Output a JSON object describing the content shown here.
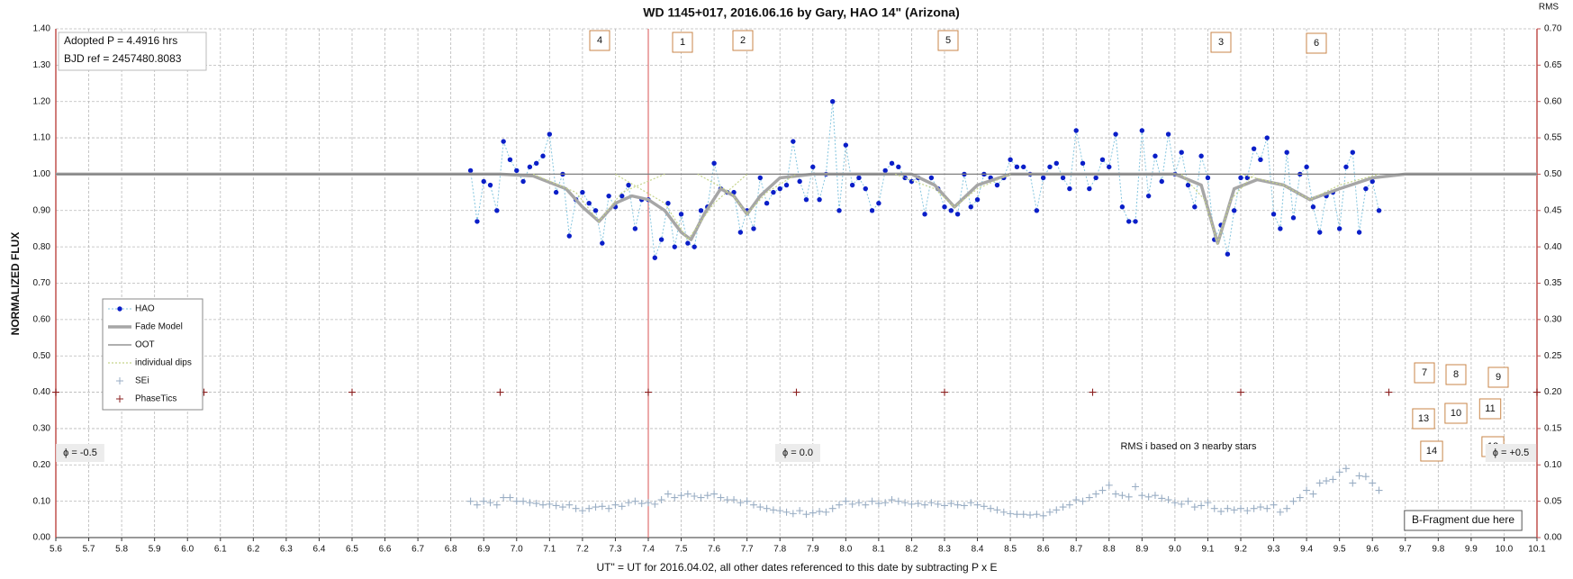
{
  "chart_data": {
    "type": "scatter",
    "title": "WD 1145+017, 2016.06.16  by Gary, HAO 14\" (Arizona)",
    "x_label": "UT\" = UT for 2016.04.02, all other dates referenced to this date by subtracting P x E",
    "y_label": "NORMALIZED  FLUX",
    "y2_label": "RMS",
    "xlim": [
      5.6,
      10.1
    ],
    "ylim": [
      0,
      1.4
    ],
    "y2lim": [
      0,
      0.7
    ],
    "grid": true,
    "reference_line_x": 7.4,
    "xticks": [
      5.6,
      5.7,
      5.8,
      5.9,
      {
        "value": 6.0,
        "label": "6.0"
      },
      6.1,
      6.2,
      6.3,
      6.4,
      6.5,
      6.6,
      6.7,
      6.8,
      6.9,
      {
        "value": 7.0,
        "label": "7.0"
      },
      7.1,
      7.2,
      7.3,
      7.4,
      7.5,
      7.6,
      7.7,
      7.8,
      7.9,
      {
        "value": 8.0,
        "label": "8.0"
      },
      8.1,
      8.2,
      8.3,
      8.4,
      8.5,
      8.6,
      8.7,
      8.8,
      8.9,
      {
        "value": 9.0,
        "label": "9.0"
      },
      9.1,
      9.2,
      9.3,
      9.4,
      9.5,
      9.6,
      9.7,
      9.8,
      9.9,
      {
        "value": 10.0,
        "label": "10.0"
      },
      10.1
    ],
    "yticks": [
      {
        "value": 0,
        "label": "0.00"
      },
      {
        "value": 0.1,
        "label": "0.10"
      },
      {
        "value": 0.2,
        "label": "0.20"
      },
      {
        "value": 0.3,
        "label": "0.30"
      },
      {
        "value": 0.4,
        "label": "0.40"
      },
      {
        "value": 0.5,
        "label": "0.50"
      },
      {
        "value": 0.6,
        "label": "0.60"
      },
      {
        "value": 0.7,
        "label": "0.70"
      },
      {
        "value": 0.8,
        "label": "0.80"
      },
      {
        "value": 0.9,
        "label": "0.90"
      },
      {
        "value": 1.0,
        "label": "1.00"
      },
      {
        "value": 1.1,
        "label": "1.10"
      },
      {
        "value": 1.2,
        "label": "1.20"
      },
      {
        "value": 1.3,
        "label": "1.30"
      },
      {
        "value": 1.4,
        "label": "1.40"
      }
    ],
    "y2ticks": [
      {
        "value": 0,
        "label": "0.00"
      },
      {
        "value": 0.05,
        "label": "0.05"
      },
      {
        "value": 0.1,
        "label": "0.10"
      },
      {
        "value": 0.15,
        "label": "0.15"
      },
      {
        "value": 0.2,
        "label": "0.20"
      },
      {
        "value": 0.25,
        "label": "0.25"
      },
      {
        "value": 0.3,
        "label": "0.30"
      },
      {
        "value": 0.35,
        "label": "0.35"
      },
      {
        "value": 0.4,
        "label": "0.40"
      },
      {
        "value": 0.45,
        "label": "0.45"
      },
      {
        "value": 0.5,
        "label": "0.50"
      },
      {
        "value": 0.55,
        "label": "0.55"
      },
      {
        "value": 0.6,
        "label": "0.60"
      },
      {
        "value": 0.65,
        "label": "0.65"
      },
      {
        "value": 0.7,
        "label": "0.70"
      }
    ],
    "x": [
      6.86,
      6.88,
      6.9,
      6.92,
      6.94,
      6.96,
      6.98,
      7.0,
      7.02,
      7.04,
      7.06,
      7.08,
      7.1,
      7.12,
      7.14,
      7.16,
      7.18,
      7.2,
      7.22,
      7.24,
      7.26,
      7.28,
      7.3,
      7.32,
      7.34,
      7.36,
      7.38,
      7.4,
      7.42,
      7.44,
      7.46,
      7.48,
      7.5,
      7.52,
      7.54,
      7.56,
      7.58,
      7.6,
      7.62,
      7.64,
      7.66,
      7.68,
      7.7,
      7.72,
      7.74,
      7.76,
      7.78,
      7.8,
      7.82,
      7.84,
      7.86,
      7.88,
      7.9,
      7.92,
      7.94,
      7.96,
      7.98,
      8.0,
      8.02,
      8.04,
      8.06,
      8.08,
      8.1,
      8.12,
      8.14,
      8.16,
      8.18,
      8.2,
      8.22,
      8.24,
      8.26,
      8.28,
      8.3,
      8.32,
      8.34,
      8.36,
      8.38,
      8.4,
      8.42,
      8.44,
      8.46,
      8.48,
      8.5,
      8.52,
      8.54,
      8.56,
      8.58,
      8.6,
      8.62,
      8.64,
      8.66,
      8.68,
      8.7,
      8.72,
      8.74,
      8.76,
      8.78,
      8.8,
      8.82,
      8.84,
      8.86,
      8.88,
      8.9,
      8.92,
      8.94,
      8.96,
      8.98,
      9.0,
      9.02,
      9.04,
      9.06,
      9.08,
      9.1,
      9.12,
      9.14,
      9.16,
      9.18,
      9.2,
      9.22,
      9.24,
      9.26,
      9.28,
      9.3,
      9.32,
      9.34,
      9.36,
      9.38,
      9.4,
      9.42,
      9.44,
      9.46,
      9.48,
      9.5,
      9.52,
      9.54,
      9.56,
      9.58,
      9.6,
      9.62
    ],
    "series": [
      {
        "name": "HAO",
        "kind": "dots",
        "color": "#0a1ec8",
        "line_color": "#86c6df",
        "values": [
          1.01,
          0.87,
          0.98,
          0.97,
          0.9,
          1.09,
          1.04,
          1.01,
          0.98,
          1.02,
          1.03,
          1.05,
          1.11,
          0.95,
          1.0,
          0.83,
          0.93,
          0.95,
          0.92,
          0.9,
          0.81,
          0.94,
          0.91,
          0.94,
          0.97,
          0.85,
          0.93,
          0.93,
          0.77,
          0.82,
          0.92,
          0.8,
          0.89,
          0.81,
          0.8,
          0.9,
          0.91,
          1.03,
          0.96,
          0.95,
          0.95,
          0.84,
          0.9,
          0.85,
          0.99,
          0.92,
          0.95,
          0.96,
          0.97,
          1.09,
          0.98,
          0.93,
          1.02,
          0.93,
          1.0,
          1.2,
          0.9,
          1.08,
          0.97,
          0.99,
          0.96,
          0.9,
          0.92,
          1.01,
          1.03,
          1.02,
          0.99,
          0.98,
          0.99,
          0.89,
          0.99,
          0.96,
          0.91,
          0.9,
          0.89,
          1.0,
          0.91,
          0.93,
          1.0,
          0.99,
          0.97,
          0.99,
          1.04,
          1.02,
          1.02,
          1.0,
          0.9,
          0.99,
          1.02,
          1.03,
          0.99,
          0.96,
          1.12,
          1.03,
          0.96,
          0.99,
          1.04,
          1.02,
          1.11,
          0.91,
          0.87,
          0.87,
          1.12,
          0.94,
          1.05,
          0.98,
          1.11,
          1.0,
          1.06,
          0.97,
          0.91,
          1.05,
          0.99,
          0.82,
          0.86,
          0.78,
          0.9,
          0.99,
          0.99,
          1.07,
          1.04,
          1.1,
          0.89,
          0.85,
          1.06,
          0.88,
          1.0,
          1.02,
          0.91,
          0.84,
          0.94,
          0.95,
          0.85,
          1.02,
          1.06,
          0.84,
          0.96,
          0.98,
          0.9
        ]
      },
      {
        "name": "Fade Model",
        "kind": "line",
        "color": "#a6a6a6",
        "width": 3.5,
        "x": [
          5.6,
          6.95,
          7.05,
          7.15,
          7.2,
          7.25,
          7.3,
          7.35,
          7.4,
          7.45,
          7.5,
          7.53,
          7.57,
          7.62,
          7.66,
          7.7,
          7.74,
          7.8,
          7.9,
          8.2,
          8.27,
          8.33,
          8.4,
          8.5,
          9.0,
          9.08,
          9.13,
          9.18,
          9.25,
          9.33,
          9.41,
          9.5,
          9.6,
          9.7,
          10.1
        ],
        "values": [
          1,
          1,
          0.995,
          0.96,
          0.91,
          0.87,
          0.92,
          0.94,
          0.93,
          0.9,
          0.84,
          0.82,
          0.89,
          0.96,
          0.94,
          0.89,
          0.94,
          0.99,
          1,
          1,
          0.97,
          0.91,
          0.97,
          1,
          1,
          0.97,
          0.81,
          0.96,
          0.985,
          0.97,
          0.93,
          0.96,
          0.99,
          1,
          1
        ]
      },
      {
        "name": "OOT",
        "kind": "line",
        "color": "#7f7f7f",
        "width": 1.2,
        "x": [
          5.6,
          10.1
        ],
        "values": [
          1,
          1
        ]
      },
      {
        "name": "individual dips",
        "kind": "pieces",
        "color": "#c5d48a",
        "pieces": [
          {
            "x": [
              7.05,
              7.18,
              7.25,
              7.32,
              7.45
            ],
            "values": [
              1,
              0.95,
              0.87,
              0.95,
              1
            ]
          },
          {
            "x": [
              7.3,
              7.45,
              7.52,
              7.6,
              7.7
            ],
            "values": [
              1,
              0.92,
              0.82,
              0.92,
              1
            ]
          },
          {
            "x": [
              7.55,
              7.65,
              7.7,
              7.76,
              7.85
            ],
            "values": [
              1,
              0.95,
              0.89,
              0.95,
              1
            ]
          },
          {
            "x": [
              8.15,
              8.27,
              8.33,
              8.4,
              8.5
            ],
            "values": [
              1,
              0.96,
              0.91,
              0.96,
              1
            ]
          },
          {
            "x": [
              9.02,
              9.09,
              9.13,
              9.17,
              9.24
            ],
            "values": [
              1,
              0.93,
              0.81,
              0.93,
              1
            ]
          },
          {
            "x": [
              9.2,
              9.33,
              9.41,
              9.5,
              9.62
            ],
            "values": [
              1,
              0.97,
              0.93,
              0.97,
              1
            ]
          }
        ]
      },
      {
        "name": "SEi",
        "kind": "plus",
        "color": "#9aaec4",
        "axis": "y2",
        "values": [
          0.05,
          0.045,
          0.05,
          0.048,
          0.045,
          0.055,
          0.055,
          0.05,
          0.05,
          0.048,
          0.047,
          0.045,
          0.046,
          0.044,
          0.042,
          0.045,
          0.04,
          0.037,
          0.04,
          0.042,
          0.043,
          0.04,
          0.045,
          0.043,
          0.048,
          0.05,
          0.047,
          0.048,
          0.046,
          0.052,
          0.06,
          0.055,
          0.058,
          0.06,
          0.057,
          0.055,
          0.058,
          0.06,
          0.055,
          0.052,
          0.052,
          0.048,
          0.05,
          0.045,
          0.042,
          0.04,
          0.038,
          0.037,
          0.035,
          0.033,
          0.037,
          0.032,
          0.034,
          0.036,
          0.035,
          0.04,
          0.045,
          0.05,
          0.046,
          0.048,
          0.045,
          0.05,
          0.047,
          0.048,
          0.052,
          0.05,
          0.048,
          0.046,
          0.047,
          0.045,
          0.048,
          0.046,
          0.044,
          0.047,
          0.045,
          0.044,
          0.048,
          0.045,
          0.043,
          0.04,
          0.038,
          0.035,
          0.033,
          0.032,
          0.032,
          0.031,
          0.032,
          0.03,
          0.035,
          0.038,
          0.042,
          0.045,
          0.052,
          0.05,
          0.055,
          0.06,
          0.065,
          0.072,
          0.06,
          0.058,
          0.056,
          0.07,
          0.058,
          0.056,
          0.058,
          0.054,
          0.052,
          0.048,
          0.046,
          0.05,
          0.042,
          0.044,
          0.048,
          0.04,
          0.036,
          0.04,
          0.038,
          0.04,
          0.037,
          0.04,
          0.042,
          0.04,
          0.045,
          0.035,
          0.04,
          0.05,
          0.055,
          0.065,
          0.06,
          0.075,
          0.078,
          0.08,
          0.09,
          0.095,
          0.075,
          0.085,
          0.084,
          0.075,
          0.065
        ]
      },
      {
        "name": "PhaseTics",
        "kind": "plus",
        "color": "#8b2020",
        "x": [
          5.6,
          6.05,
          6.5,
          6.95,
          7.4,
          7.85,
          8.3,
          8.75,
          9.2,
          9.65,
          10.1
        ],
        "values": [
          0.4,
          0.4,
          0.4,
          0.4,
          0.4,
          0.4,
          0.4,
          0.4,
          0.4,
          0.4,
          0.4
        ]
      }
    ],
    "annotations": [
      "4",
      "1",
      "2",
      "5",
      "3",
      "6",
      "7",
      "8",
      "9",
      "13",
      "10",
      "11",
      "14",
      "12",
      "Adopted P = 4.4916 hrs",
      "BJD ref = 2457480.8083",
      "ϕ = -0.5",
      "ϕ = 0.0",
      "ϕ = +0.5",
      "RMS i based on 3 nearby stars",
      "B-Fragment due here"
    ]
  }
}
